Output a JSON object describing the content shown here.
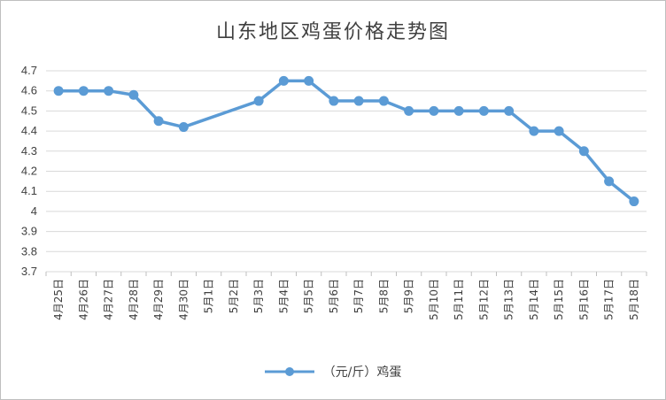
{
  "chart_data": {
    "type": "line",
    "title": "山东地区鸡蛋价格走势图",
    "categories": [
      "4月25日",
      "4月26日",
      "4月27日",
      "4月28日",
      "4月29日",
      "4月30日",
      "5月1日",
      "5月2日",
      "5月3日",
      "5月4日",
      "5月5日",
      "5月6日",
      "5月7日",
      "5月8日",
      "5月9日",
      "5月10日",
      "5月11日",
      "5月12日",
      "5月13日",
      "5月14日",
      "5月15日",
      "5月16日",
      "5月17日",
      "5月18日"
    ],
    "series": [
      {
        "name": "（元/斤）鸡蛋",
        "values": [
          4.6,
          4.6,
          4.6,
          4.58,
          4.45,
          4.42,
          null,
          null,
          4.55,
          4.65,
          4.65,
          4.55,
          4.55,
          4.55,
          4.5,
          4.5,
          4.5,
          4.5,
          4.5,
          4.4,
          4.4,
          4.3,
          4.15,
          4.05
        ]
      }
    ],
    "ylim": [
      3.7,
      4.7
    ],
    "yticks": [
      "3.7",
      "3.8",
      "3.9",
      "4",
      "4.1",
      "4.2",
      "4.3",
      "4.4",
      "4.5",
      "4.6",
      "4.7"
    ],
    "grid": true,
    "legend_position": "bottom",
    "line_color": "#5b9bd5",
    "gridline_color": "#d9d9d9"
  }
}
